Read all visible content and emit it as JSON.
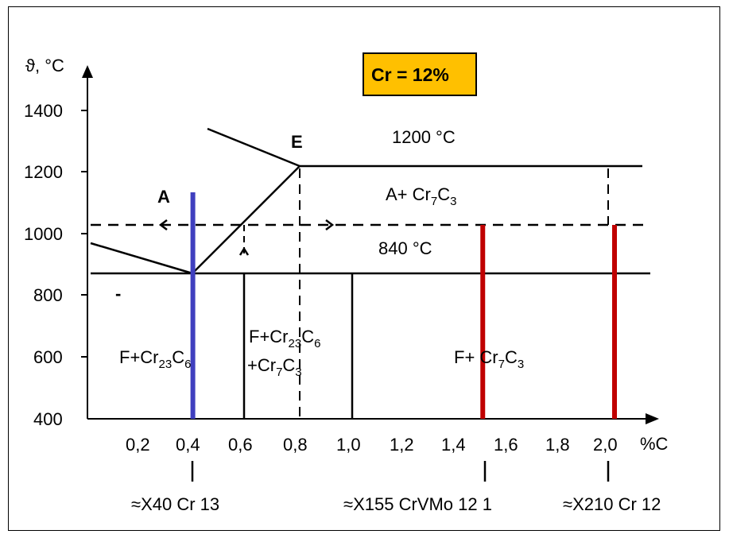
{
  "title_box": {
    "text": "Cr = 12%",
    "fill": "#FFC000"
  },
  "axes": {
    "y_label": "ϑ, °C",
    "x_label": "%C",
    "y_ticks": [
      "400",
      "600",
      "800",
      "1000",
      "1200",
      "1400"
    ],
    "x_ticks": [
      "0,2",
      "0,4",
      "0,6",
      "0,8",
      "1,0",
      "1,2",
      "1,4",
      "1,6",
      "1,8",
      "2,0"
    ]
  },
  "points": {
    "A": "A",
    "E": "E"
  },
  "temperatures": {
    "upper": "1200 °C",
    "lower": "840 °C"
  },
  "dash_mark": "-",
  "regions": {
    "ferrite_cr23": {
      "base": "F+Cr",
      "s1": "23",
      "mid": "C",
      "s2": "6"
    },
    "mixed_line1": {
      "base": "F+Cr",
      "s1": "23",
      "mid": "C",
      "s2": "6"
    },
    "mixed_line2": {
      "base": "+Cr",
      "s1": "7",
      "mid": "C",
      "s2": "3"
    },
    "ferrite_cr7": {
      "base": "F+ Cr",
      "s1": "7",
      "mid": "C",
      "s2": "3"
    },
    "austenite_cr7": {
      "base": "A+ Cr",
      "s1": "7",
      "mid": "C",
      "s2": "3"
    }
  },
  "steels": [
    {
      "label": "≈X40 Cr 13",
      "carbon": 0.4,
      "color": "#3F3FBF"
    },
    {
      "label": "≈X155 CrVMo 12 1",
      "carbon": 1.5,
      "color": "#C00000"
    },
    {
      "label": "≈X210 Cr 12",
      "carbon": 2.0,
      "color": "#C00000"
    }
  ]
}
